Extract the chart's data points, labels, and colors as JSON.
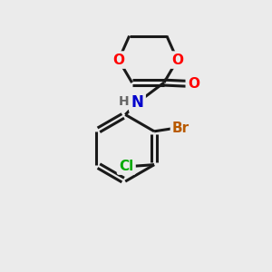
{
  "background_color": "#ebebeb",
  "bond_color": "#1a1a1a",
  "bond_width": 2.2,
  "atom_colors": {
    "O": "#ff0000",
    "N": "#0000cc",
    "Br": "#b85a00",
    "Cl": "#00aa00",
    "C": "#1a1a1a",
    "H": "#666666"
  },
  "font_size": 11,
  "figsize": [
    3.0,
    3.0
  ],
  "dpi": 100,
  "xlim": [
    0,
    10
  ],
  "ylim": [
    0,
    10
  ]
}
